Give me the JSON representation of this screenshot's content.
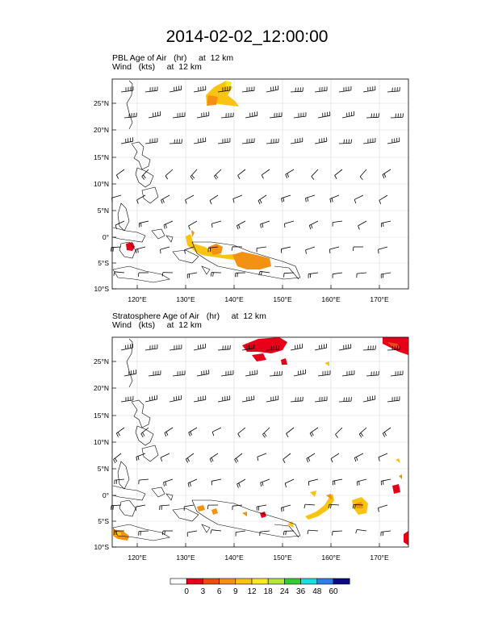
{
  "title": "2014-02-02_12:00:00",
  "panels": [
    {
      "line1": "PBL Age of Air   (hr)     at  12 km",
      "line2": "Wind   (kts)     at  12 km",
      "lat_labels": [
        "25°N",
        "20°N",
        "15°N",
        "10°N",
        "5°N",
        "0°",
        "5°S",
        "10°S"
      ],
      "lon_labels": [
        "120°E",
        "130°E",
        "140°E",
        "150°E",
        "160°E",
        "170°E"
      ]
    },
    {
      "line1": "Stratosphere Age of Air   (hr)     at  12 km",
      "line2": "Wind   (kts)     at  12 km",
      "lat_labels": [
        "25°N",
        "20°N",
        "15°N",
        "10°N",
        "5°N",
        "0°",
        "5°S",
        "10°S"
      ],
      "lon_labels": [
        "120°E",
        "130°E",
        "140°E",
        "150°E",
        "160°E",
        "170°E"
      ]
    }
  ],
  "colorbar": {
    "labels": [
      "0",
      "3",
      "6",
      "9",
      "12",
      "18",
      "24",
      "36",
      "48",
      "60"
    ],
    "colors": [
      "#ffffff",
      "#e8001a",
      "#f04a10",
      "#f39112",
      "#f8c410",
      "#f9e81a",
      "#b4e632",
      "#33cc33",
      "#18e0e0",
      "#2f7ee8",
      "#0a0a80"
    ]
  }
}
